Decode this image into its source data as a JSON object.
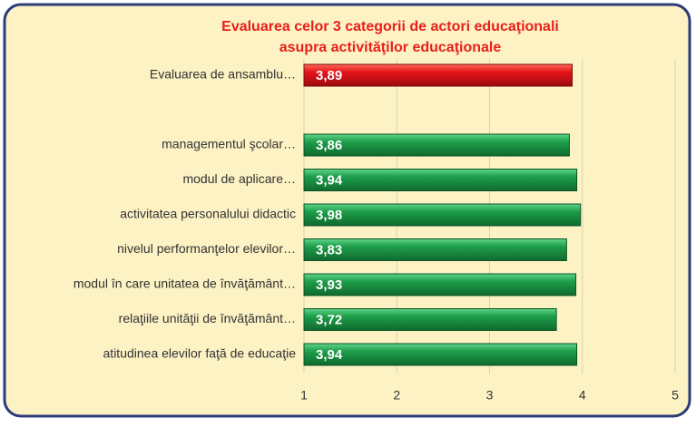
{
  "chart_data": {
    "type": "bar",
    "orientation": "horizontal",
    "title": [
      "Evaluarea celor 3 categorii de actori educaţionali",
      "asupra activităţilor educaţionale"
    ],
    "categories": [
      "Evaluarea de ansamblu…",
      null,
      "managementul şcolar…",
      "modul de aplicare…",
      "activitatea personalului didactic",
      "nivelul performanţelor elevilor…",
      "modul în care unitatea de învăţământ…",
      "relaţiile unităţii de învăţământ…",
      "atitudinea elevilor faţă de educaţie"
    ],
    "values": [
      3.89,
      null,
      3.86,
      3.94,
      3.98,
      3.83,
      3.93,
      3.72,
      3.94
    ],
    "value_labels": [
      "3,89",
      null,
      "3,86",
      "3,94",
      "3,98",
      "3,83",
      "3,93",
      "3,72",
      "3,94"
    ],
    "colors": [
      "red",
      null,
      "green",
      "green",
      "green",
      "green",
      "green",
      "green",
      "green"
    ],
    "xlim": [
      1,
      5
    ],
    "xticks": [
      1,
      2,
      3,
      4,
      5
    ],
    "grid": true
  }
}
